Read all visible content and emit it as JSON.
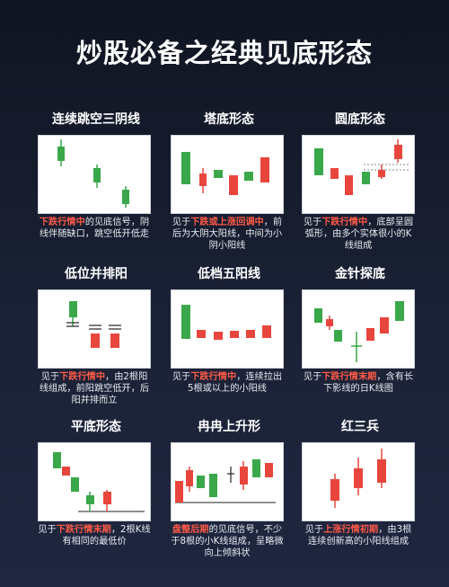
{
  "page_title": "炒股必备之经典见底形态",
  "colors": {
    "bull": "#e8463d",
    "bear": "#3aa84a",
    "highlight": "#ff5a47"
  },
  "patterns": [
    {
      "title": "连续跳空三阴线",
      "desc_pre": "",
      "desc_hl": "下跌行情中",
      "desc_post": "的见底信号，阴线伴随缺口，跳空低开低走"
    },
    {
      "title": "塔底形态",
      "desc_pre": "见于",
      "desc_hl": "下跌或上涨回调中",
      "desc_post": "，前后为大阴大阳线，中间为小阴小阳线"
    },
    {
      "title": "圆底形态",
      "desc_pre": "见于",
      "desc_hl": "下跌行情中",
      "desc_post": "，底部呈圆弧形，由多个实体很小的K线组成"
    },
    {
      "title": "低位并排阳",
      "desc_pre": "见于",
      "desc_hl": "下跌行情中",
      "desc_post": "，由2根阳线组成，前阳跳空低开，后阳并排而立"
    },
    {
      "title": "低档五阳线",
      "desc_pre": "见于",
      "desc_hl": "下跌行情中",
      "desc_post": "，连续拉出5根或以上的小阳线"
    },
    {
      "title": "金针探底",
      "desc_pre": "见于",
      "desc_hl": "下跌行情末期",
      "desc_post": "，含有长下影线的日K线图"
    },
    {
      "title": "平底形态",
      "desc_pre": "见于",
      "desc_hl": "下跌行情末期",
      "desc_post": "，2根K线有相同的最低价"
    },
    {
      "title": "冉冉上升形",
      "desc_pre": "",
      "desc_hl": "盘整后期",
      "desc_post": "的见底信号，不少于8根的小K线组成，呈略微向上倾斜状"
    },
    {
      "title": "红三兵",
      "desc_pre": "见于",
      "desc_hl": "上涨行情初期",
      "desc_post": "，由3根连续创新高的小阳线组成"
    }
  ]
}
